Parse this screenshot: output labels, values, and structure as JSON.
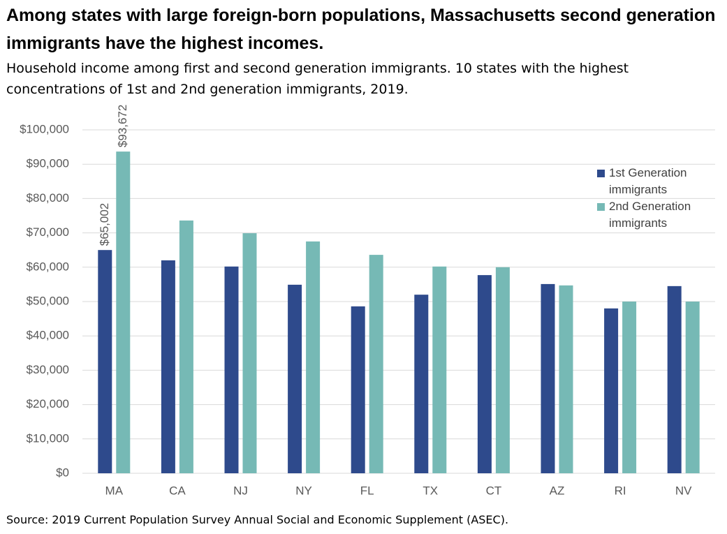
{
  "chart_data": {
    "type": "bar",
    "title": "Among states with large foreign-born populations, Massachusetts second generation immigrants have the highest incomes.",
    "subtitle": "Household income among first and second generation immigrants. 10 states with the highest concentrations of 1st and 2nd generation immigrants, 2019.",
    "source": "Source: 2019 Current Population Survey Annual Social and Economic Supplement (ASEC).",
    "categories": [
      "MA",
      "CA",
      "NJ",
      "NY",
      "FL",
      "TX",
      "CT",
      "AZ",
      "RI",
      "NV"
    ],
    "series": [
      {
        "name": "1st Generation immigrants",
        "color": "#2e4a8c",
        "values": [
          65002,
          62000,
          60200,
          54900,
          48600,
          52000,
          57700,
          55100,
          48000,
          54500
        ],
        "value_labels": [
          "$65,002",
          null,
          null,
          null,
          null,
          null,
          null,
          null,
          null,
          null
        ]
      },
      {
        "name": "2nd Generation immigrants",
        "color": "#76b9b5",
        "values": [
          93672,
          73600,
          69900,
          67500,
          63600,
          60200,
          60000,
          54700,
          50000,
          50000
        ],
        "value_labels": [
          "$93,672",
          null,
          null,
          null,
          null,
          null,
          null,
          null,
          null,
          null
        ]
      }
    ],
    "ylim": [
      0,
      100000
    ],
    "yticks": [
      {
        "value": 0,
        "label": "$0"
      },
      {
        "value": 10000,
        "label": "$10,000"
      },
      {
        "value": 20000,
        "label": "$20,000"
      },
      {
        "value": 30000,
        "label": "$30,000"
      },
      {
        "value": 40000,
        "label": "$40,000"
      },
      {
        "value": 50000,
        "label": "$50,000"
      },
      {
        "value": 60000,
        "label": "$60,000"
      },
      {
        "value": 70000,
        "label": "$70,000"
      },
      {
        "value": 80000,
        "label": "$80,000"
      },
      {
        "value": 90000,
        "label": "$90,000"
      },
      {
        "value": 100000,
        "label": "$100,000"
      }
    ],
    "grid": true
  }
}
